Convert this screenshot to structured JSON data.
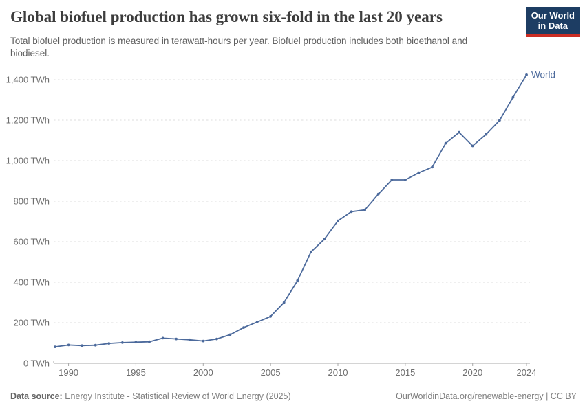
{
  "header": {
    "logo": {
      "line1": "Our World",
      "line2": "in Data"
    }
  },
  "chart_data": {
    "type": "line",
    "title": "Global biofuel production has grown six-fold in the last 20 years",
    "subtitle": "Total biofuel production is measured in terawatt-hours per year. Biofuel production includes both bioethanol and biodiesel.",
    "unit": "TWh",
    "xlabel": "",
    "ylabel": "",
    "xlim": [
      1989,
      2024
    ],
    "ylim": [
      0,
      1400
    ],
    "grid": "horizontal-dashed",
    "legend": "end-of-line-label",
    "x": [
      1989,
      1990,
      1991,
      1992,
      1993,
      1994,
      1995,
      1996,
      1997,
      1998,
      1999,
      2000,
      2001,
      2002,
      2003,
      2004,
      2005,
      2006,
      2007,
      2008,
      2009,
      2010,
      2011,
      2012,
      2013,
      2014,
      2015,
      2016,
      2017,
      2018,
      2019,
      2020,
      2021,
      2022,
      2023,
      2024
    ],
    "series": [
      {
        "name": "World",
        "color": "#4c6a9c",
        "values": [
          81,
          90,
          87,
          89,
          98,
          102,
          104,
          106,
          124,
          120,
          116,
          110,
          120,
          141,
          176,
          203,
          231,
          300,
          408,
          550,
          613,
          703,
          748,
          757,
          835,
          905,
          905,
          940,
          968,
          1086,
          1140,
          1073,
          1130,
          1199,
          1313,
          1424
        ]
      }
    ],
    "yticks": [
      {
        "value": 0,
        "label": "0 TWh"
      },
      {
        "value": 200,
        "label": "200 TWh"
      },
      {
        "value": 400,
        "label": "400 TWh"
      },
      {
        "value": 600,
        "label": "600 TWh"
      },
      {
        "value": 800,
        "label": "800 TWh"
      },
      {
        "value": 1000,
        "label": "1,000 TWh"
      },
      {
        "value": 1200,
        "label": "1,200 TWh"
      },
      {
        "value": 1400,
        "label": "1,400 TWh"
      }
    ],
    "xticks": [
      {
        "value": 1990,
        "label": "1990"
      },
      {
        "value": 1995,
        "label": "1995"
      },
      {
        "value": 2000,
        "label": "2000"
      },
      {
        "value": 2005,
        "label": "2005"
      },
      {
        "value": 2010,
        "label": "2010"
      },
      {
        "value": 2015,
        "label": "2015"
      },
      {
        "value": 2020,
        "label": "2020"
      },
      {
        "value": 2024,
        "label": "2024"
      }
    ]
  },
  "footer": {
    "datasource_label": "Data source:",
    "datasource_text": "Energy Institute - Statistical Review of World Energy (2025)",
    "right_text": "OurWorldinData.org/renewable-energy | CC BY"
  },
  "colors": {
    "accent": "#4c6a9c",
    "logo_bg": "#1d3d63",
    "logo_stripe": "#cb2d24",
    "grid": "#dcdcdc",
    "axis": "#a8a8a8",
    "tick_text": "#6e6e6e"
  }
}
